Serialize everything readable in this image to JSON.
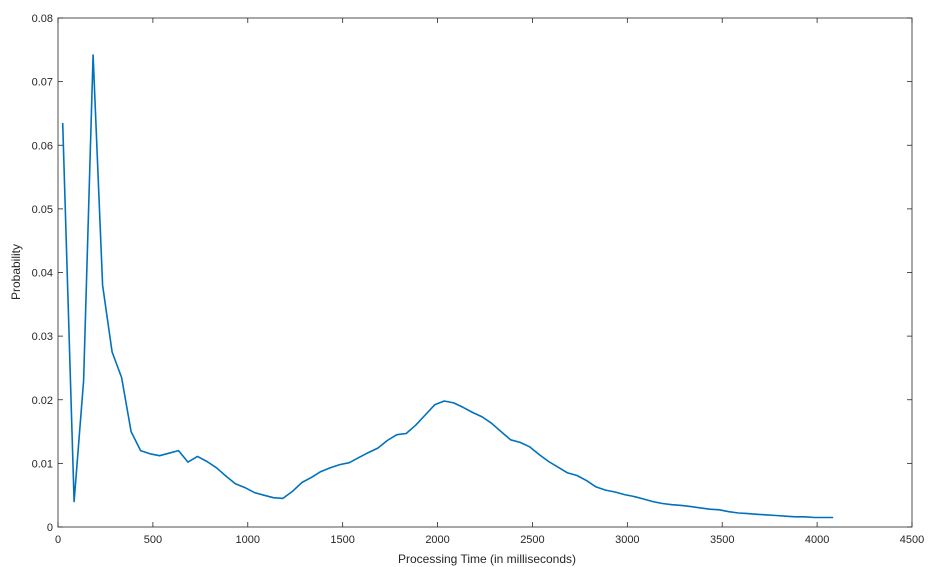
{
  "chart_data": {
    "type": "line",
    "title": "",
    "xlabel": "Processing Time (in milliseconds)",
    "ylabel": "Probability",
    "xlim": [
      0,
      4500
    ],
    "ylim": [
      0,
      0.08
    ],
    "x_ticks": [
      0,
      500,
      1000,
      1500,
      2000,
      2500,
      3000,
      3500,
      4000,
      4500
    ],
    "x_tick_labels": [
      "0",
      "500",
      "1000",
      "1500",
      "2000",
      "2500",
      "3000",
      "3500",
      "4000",
      "4500"
    ],
    "y_ticks": [
      0,
      0.01,
      0.02,
      0.03,
      0.04,
      0.05,
      0.06,
      0.07,
      0.08
    ],
    "y_tick_labels": [
      "0",
      "0.01",
      "0.02",
      "0.03",
      "0.04",
      "0.05",
      "0.06",
      "0.07",
      "0.08"
    ],
    "grid": false,
    "box": true,
    "line_color": "#0072BD",
    "series": [
      {
        "x": [
          25,
          85,
          135,
          185,
          235,
          285,
          335,
          385,
          435,
          485,
          535,
          585,
          635,
          685,
          735,
          785,
          835,
          885,
          935,
          985,
          1035,
          1085,
          1135,
          1185,
          1235,
          1285,
          1335,
          1385,
          1435,
          1485,
          1535,
          1585,
          1635,
          1685,
          1735,
          1785,
          1835,
          1885,
          1935,
          1985,
          2035,
          2085,
          2135,
          2185,
          2235,
          2285,
          2335,
          2385,
          2435,
          2485,
          2535,
          2585,
          2635,
          2685,
          2735,
          2785,
          2835,
          2885,
          2935,
          2985,
          3035,
          3085,
          3135,
          3185,
          3235,
          3285,
          3335,
          3385,
          3435,
          3485,
          3535,
          3585,
          3635,
          3685,
          3735,
          3785,
          3835,
          3885,
          3935,
          3985,
          4035,
          4085
        ],
        "y": [
          0.0635,
          0.004,
          0.023,
          0.0742,
          0.038,
          0.0275,
          0.0235,
          0.015,
          0.012,
          0.0115,
          0.0112,
          0.0116,
          0.012,
          0.0102,
          0.0111,
          0.0103,
          0.0093,
          0.008,
          0.0068,
          0.0062,
          0.0054,
          0.005,
          0.0046,
          0.0045,
          0.0056,
          0.007,
          0.0078,
          0.0087,
          0.0093,
          0.0098,
          0.0101,
          0.0109,
          0.0117,
          0.0124,
          0.0136,
          0.0145,
          0.0147,
          0.016,
          0.0176,
          0.0192,
          0.0198,
          0.0195,
          0.0188,
          0.018,
          0.0173,
          0.0163,
          0.015,
          0.0137,
          0.0133,
          0.0126,
          0.0114,
          0.0103,
          0.0094,
          0.0085,
          0.0081,
          0.0073,
          0.0063,
          0.0058,
          0.0055,
          0.0051,
          0.0048,
          0.0044,
          0.004,
          0.0037,
          0.0035,
          0.0034,
          0.0032,
          0.003,
          0.0028,
          0.0027,
          0.0024,
          0.0022,
          0.0021,
          0.002,
          0.0019,
          0.0018,
          0.0017,
          0.0016,
          0.0016,
          0.0015,
          0.0015,
          0.0015
        ]
      }
    ]
  }
}
